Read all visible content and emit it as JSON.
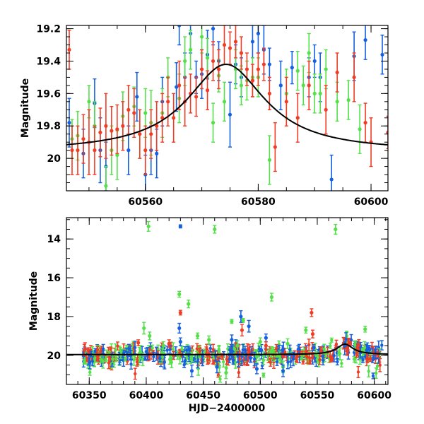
{
  "chart_data": [
    {
      "type": "scatter",
      "title": "",
      "xlabel": "",
      "ylabel": "Magnitude",
      "xlim": [
        60546,
        60603
      ],
      "ylim": [
        20.2,
        19.18
      ],
      "y_inverted": true,
      "xticks": [
        60560,
        60580,
        60600
      ],
      "yticks": [
        19.2,
        19.4,
        19.6,
        19.8,
        20
      ],
      "ytick_labels": [
        "19.2",
        "19.4",
        "19.6",
        "19.8",
        "20"
      ],
      "grid": false,
      "colors": {
        "blue": "#1560e0",
        "green": "#55e04a",
        "red": "#f03c24",
        "model": "#000000"
      },
      "model_curve": {
        "baseline": 19.96,
        "amplitude": 0.54,
        "t0": 60574.3,
        "width": 8.5
      },
      "series": [
        {
          "color": "blue",
          "points": [
            [
              60546.5,
              19.78,
              0.15
            ],
            [
              60549,
              19.97,
              0.15
            ],
            [
              60551,
              19.66,
              0.15
            ],
            [
              60552,
              19.95,
              0.2
            ],
            [
              60553,
              20.05,
              0.15
            ],
            [
              60557,
              19.95,
              0.15
            ],
            [
              60558.5,
              19.62,
              0.15
            ],
            [
              60560,
              20.1,
              0.12
            ],
            [
              60561,
              19.95,
              0.15
            ],
            [
              60562,
              19.97,
              0.15
            ],
            [
              60563,
              19.65,
              0.15
            ],
            [
              60565.5,
              19.56,
              0.15
            ],
            [
              60566,
              19.18,
              0.12
            ],
            [
              60567,
              19.5,
              0.15
            ],
            [
              60568,
              19.23,
              0.12
            ],
            [
              60569,
              19.5,
              0.1
            ],
            [
              60570,
              19.48,
              0.15
            ],
            [
              60571,
              19.36,
              0.15
            ],
            [
              60572,
              19.2,
              0.1
            ],
            [
              60573,
              19.4,
              0.12
            ],
            [
              60575,
              19.73,
              0.2
            ],
            [
              60576,
              19.42,
              0.12
            ],
            [
              60577,
              19.5,
              0.12
            ],
            [
              60579,
              19.28,
              0.1
            ],
            [
              60580,
              19.23,
              0.12
            ],
            [
              60581,
              19.33,
              0.15
            ],
            [
              60582,
              19.42,
              0.1
            ],
            [
              60584,
              19.55,
              0.15
            ],
            [
              60586,
              19.44,
              0.1
            ],
            [
              60589,
              19.5,
              0.12
            ],
            [
              60590,
              19.4,
              0.1
            ],
            [
              60591,
              19.5,
              0.15
            ],
            [
              60593,
              20.13,
              0.15
            ],
            [
              60597,
              19.37,
              0.15
            ],
            [
              60599,
              19.27,
              0.12
            ],
            [
              60602,
              19.36,
              0.12
            ]
          ]
        },
        {
          "color": "green",
          "points": [
            [
              60547,
              19.88,
              0.12
            ],
            [
              60548,
              19.86,
              0.15
            ],
            [
              60550,
              19.65,
              0.1
            ],
            [
              60551,
              19.8,
              0.15
            ],
            [
              60553,
              20.17,
              0.12
            ],
            [
              60554,
              19.95,
              0.15
            ],
            [
              60555,
              19.98,
              0.15
            ],
            [
              60556,
              19.74,
              0.15
            ],
            [
              60558,
              19.68,
              0.12
            ],
            [
              60559,
              19.85,
              0.15
            ],
            [
              60560,
              19.72,
              0.15
            ],
            [
              60561,
              19.78,
              0.2
            ],
            [
              60563,
              19.72,
              0.15
            ],
            [
              60564,
              19.5,
              0.12
            ],
            [
              60566,
              19.63,
              0.15
            ],
            [
              60567,
              19.4,
              0.15
            ],
            [
              60568,
              19.33,
              0.12
            ],
            [
              60570,
              19.25,
              0.1
            ],
            [
              60571,
              19.38,
              0.12
            ],
            [
              60572,
              19.78,
              0.12
            ],
            [
              60573,
              19.49,
              0.1
            ],
            [
              60574,
              19.65,
              0.12
            ],
            [
              60576,
              19.45,
              0.12
            ],
            [
              60577,
              19.55,
              0.12
            ],
            [
              60578,
              19.52,
              0.12
            ],
            [
              60579,
              19.5,
              0.12
            ],
            [
              60580,
              19.5,
              0.12
            ],
            [
              60582,
              20.01,
              0.15
            ],
            [
              60585,
              19.6,
              0.15
            ],
            [
              60587,
              19.46,
              0.12
            ],
            [
              60588,
              19.55,
              0.12
            ],
            [
              60589,
              19.35,
              0.12
            ],
            [
              60590,
              19.6,
              0.12
            ],
            [
              60591,
              19.6,
              0.12
            ],
            [
              60592,
              19.45,
              0.12
            ],
            [
              60594,
              19.65,
              0.12
            ],
            [
              60596,
              19.64,
              0.12
            ],
            [
              60598,
              19.82,
              0.15
            ]
          ]
        },
        {
          "color": "red",
          "points": [
            [
              60546.5,
              19.33,
              0.12
            ],
            [
              60547,
              19.95,
              0.15
            ],
            [
              60548,
              19.95,
              0.15
            ],
            [
              60549,
              19.88,
              0.15
            ],
            [
              60550,
              19.9,
              0.2
            ],
            [
              60551,
              19.95,
              0.15
            ],
            [
              60552,
              19.84,
              0.15
            ],
            [
              60553,
              19.8,
              0.2
            ],
            [
              60554,
              19.83,
              0.15
            ],
            [
              60555,
              19.82,
              0.15
            ],
            [
              60556,
              19.8,
              0.15
            ],
            [
              60557,
              19.7,
              0.15
            ],
            [
              60558,
              19.72,
              0.15
            ],
            [
              60559,
              19.85,
              0.15
            ],
            [
              60560,
              19.95,
              0.15
            ],
            [
              60561,
              19.85,
              0.15
            ],
            [
              60562,
              19.8,
              0.15
            ],
            [
              60563,
              19.75,
              0.15
            ],
            [
              60564,
              19.65,
              0.15
            ],
            [
              60565,
              19.75,
              0.15
            ],
            [
              60566,
              19.55,
              0.15
            ],
            [
              60567,
              19.65,
              0.15
            ],
            [
              60568,
              19.6,
              0.12
            ],
            [
              60569,
              19.62,
              0.12
            ],
            [
              60570,
              19.45,
              0.12
            ],
            [
              60571,
              19.58,
              0.12
            ],
            [
              60572,
              19.4,
              0.12
            ],
            [
              60573,
              19.45,
              0.12
            ],
            [
              60574,
              19.3,
              0.12
            ],
            [
              60575,
              19.32,
              0.1
            ],
            [
              60576,
              19.28,
              0.1
            ],
            [
              60577,
              19.35,
              0.1
            ],
            [
              60578,
              19.45,
              0.1
            ],
            [
              60579,
              19.52,
              0.1
            ],
            [
              60580,
              19.45,
              0.1
            ],
            [
              60581,
              19.42,
              0.1
            ],
            [
              60582,
              19.6,
              0.1
            ],
            [
              60583,
              19.93,
              0.15
            ],
            [
              60585,
              19.65,
              0.15
            ],
            [
              60587,
              19.75,
              0.15
            ],
            [
              60589,
              19.55,
              0.15
            ],
            [
              60592,
              19.7,
              0.15
            ],
            [
              60594,
              19.47,
              0.12
            ],
            [
              60597,
              19.5,
              0.15
            ],
            [
              60599,
              19.78,
              0.12
            ],
            [
              60600,
              19.9,
              0.15
            ],
            [
              60603,
              19.84,
              0.1
            ]
          ]
        }
      ]
    },
    {
      "type": "scatter",
      "title": "",
      "xlabel": "HJD−2400000",
      "ylabel": "Magnitude",
      "xlim": [
        60330,
        60612
      ],
      "ylim": [
        21.5,
        12.9
      ],
      "y_inverted": true,
      "xticks": [
        60350,
        60400,
        60450,
        60500,
        60550,
        60600
      ],
      "yticks": [
        14,
        16,
        18,
        20
      ],
      "ytick_labels": [
        "14",
        "16",
        "18",
        "20"
      ],
      "grid": false,
      "colors": {
        "blue": "#1560e0",
        "green": "#55e04a",
        "red": "#f03c24",
        "model": "#000000"
      },
      "model_curve": {
        "baseline": 19.96,
        "amplitude": 0.54,
        "t0": 60574.3,
        "width": 8.5
      },
      "outliers": {
        "green": [
          [
            60402,
            13.35,
            0.25
          ],
          [
            60460,
            13.5,
            0.2
          ],
          [
            60566,
            13.5,
            0.25
          ],
          [
            60429,
            16.85,
            0.15
          ],
          [
            60437,
            17.35,
            0.2
          ],
          [
            60475,
            18.25,
            0.1
          ],
          [
            60485,
            18.2,
            0.1
          ],
          [
            60510,
            17.0,
            0.2
          ],
          [
            60398,
            18.6,
            0.3
          ],
          [
            60415,
            19.5,
            0.2
          ],
          [
            60445,
            19.0,
            0.15
          ],
          [
            60500,
            19.3,
            0.2
          ],
          [
            60540,
            18.7,
            0.15
          ],
          [
            60592,
            18.65,
            0.15
          ],
          [
            60480,
            19.5,
            0.25
          ],
          [
            60524,
            19.4,
            0.25
          ],
          [
            60403,
            19.0,
            0.2
          ],
          [
            60455,
            19.2,
            0.2
          ],
          [
            60520,
            20.6,
            0.3
          ],
          [
            60470,
            20.9,
            0.3
          ]
        ],
        "blue": [
          [
            60430,
            13.35,
            0.08
          ],
          [
            60429,
            18.6,
            0.25
          ],
          [
            60475,
            19.2,
            0.25
          ],
          [
            60483,
            18.0,
            0.3
          ],
          [
            60490,
            18.5,
            0.3
          ],
          [
            60430,
            19.3,
            0.2
          ],
          [
            60505,
            19.1,
            0.2
          ],
          [
            60547,
            19.6,
            0.15
          ],
          [
            60520,
            20.8,
            0.3
          ],
          [
            60440,
            20.8,
            0.3
          ],
          [
            60462,
            20.6,
            0.3
          ],
          [
            60497,
            20.7,
            0.25
          ]
        ],
        "red": [
          [
            60430,
            17.8,
            0.12
          ],
          [
            60545,
            17.8,
            0.2
          ],
          [
            60484,
            18.7,
            0.3
          ],
          [
            60393,
            19.35,
            0.15
          ],
          [
            60546,
            18.9,
            0.2
          ],
          [
            60420,
            19.4,
            0.2
          ],
          [
            60505,
            19.5,
            0.2
          ]
        ]
      }
    }
  ]
}
